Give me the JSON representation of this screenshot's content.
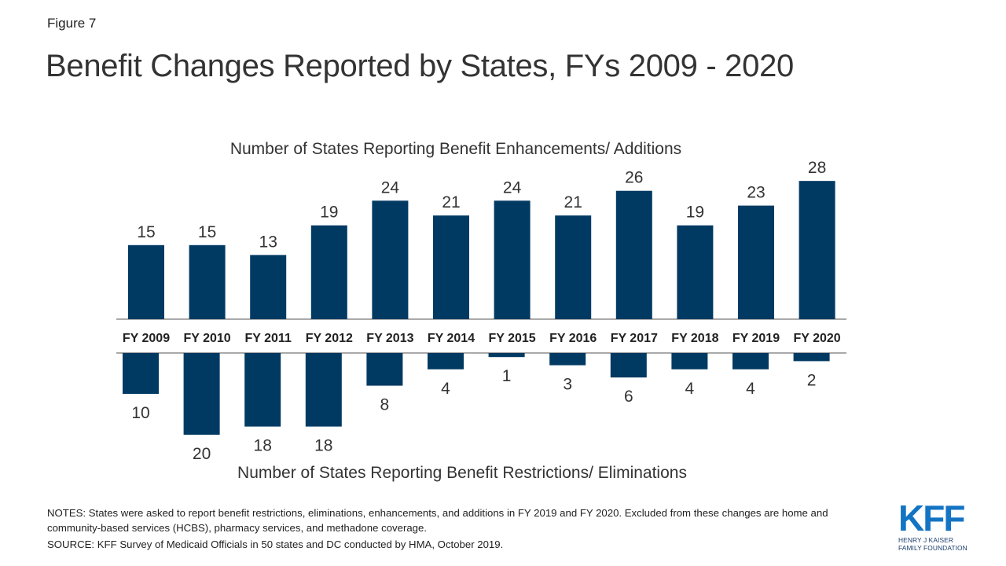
{
  "header": {
    "figure_label": "Figure 7",
    "title": "Benefit Changes Reported by States, FYs 2009 - 2020"
  },
  "chart_data": {
    "type": "bar",
    "categories": [
      "FY 2009",
      "FY 2010",
      "FY 2011",
      "FY 2012",
      "FY 2013",
      "FY 2014",
      "FY 2015",
      "FY 2016",
      "FY 2017",
      "FY 2018",
      "FY 2019",
      "FY 2020"
    ],
    "series": [
      {
        "name": "Number of States Reporting Benefit Enhancements/ Additions",
        "values": [
          15,
          15,
          13,
          19,
          24,
          21,
          24,
          21,
          26,
          19,
          23,
          28
        ]
      },
      {
        "name": "Number of States Reporting Benefit Restrictions/ Eliminations",
        "values": [
          10,
          20,
          18,
          18,
          8,
          4,
          1,
          3,
          6,
          4,
          4,
          2
        ]
      }
    ],
    "bar_color": "#003a63",
    "data_labels": true,
    "grid": false
  },
  "footer": {
    "notes": "NOTES: States were asked to report benefit restrictions, eliminations, enhancements, and additions in FY 2019 and FY 2020. Excluded from these changes are home and community-based services (HCBS), pharmacy services, and methadone coverage.",
    "source": "SOURCE: KFF Survey of Medicaid Officials in 50 states and DC conducted by HMA,  October 2019."
  },
  "logo": {
    "wordmark": "KFF",
    "subtitle": "HENRY J KAISER\nFAMILY FOUNDATION",
    "color": "#1474c4"
  }
}
